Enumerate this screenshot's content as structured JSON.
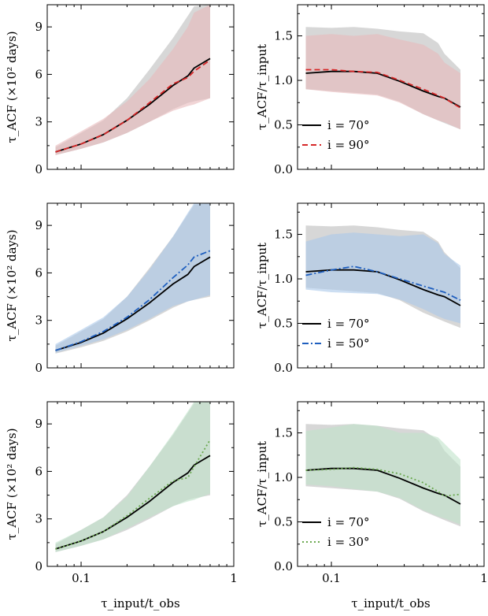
{
  "colors": {
    "black": "#000000",
    "red": "#d62728",
    "blue": "#1f5fbf",
    "green": "#6aa84f",
    "gray_band": "#c9c9c9",
    "red_band": "#e8b9bb",
    "blue_band": "#aac8ea",
    "green_band": "#bfe3c9"
  },
  "chart_data": [
    {
      "type": "area",
      "panel": "left-top",
      "xlabel": "",
      "ylabel": "τ_ACF (×10² days)",
      "xscale": "log",
      "xlim": [
        0.06,
        1.0
      ],
      "ylim": [
        0,
        10.4
      ],
      "xticks": [
        0.1,
        1
      ],
      "xtick_labels": [
        "",
        ""
      ],
      "yticks": [
        0,
        3,
        6,
        9
      ],
      "ytick_labels": [
        "0",
        "3",
        "6",
        "9"
      ],
      "x": [
        0.068,
        0.1,
        0.14,
        0.2,
        0.28,
        0.4,
        0.5,
        0.55,
        0.7
      ],
      "series": [
        {
          "name": "i = 70°",
          "style": "solid",
          "color": "#000000",
          "values": [
            1.1,
            1.6,
            2.2,
            3.1,
            4.1,
            5.3,
            5.9,
            6.4,
            7.0
          ],
          "band_low": [
            0.9,
            1.3,
            1.7,
            2.3,
            3.0,
            3.8,
            4.2,
            4.3,
            4.5
          ],
          "band_high": [
            1.4,
            2.3,
            3.1,
            4.5,
            6.3,
            8.3,
            9.7,
            10.3,
            10.4
          ]
        },
        {
          "name": "i = 90°",
          "style": "dashed",
          "color": "#d62728",
          "values": [
            1.1,
            1.6,
            2.2,
            3.1,
            4.2,
            5.4,
            5.8,
            6.2,
            6.9
          ],
          "band_low": [
            0.9,
            1.3,
            1.7,
            2.3,
            3.0,
            3.7,
            4.0,
            4.1,
            4.5
          ],
          "band_high": [
            1.5,
            2.4,
            3.2,
            4.3,
            5.7,
            7.6,
            9.0,
            9.9,
            10.4
          ]
        }
      ]
    },
    {
      "type": "area",
      "panel": "right-top",
      "xlabel": "",
      "ylabel": "τ_ACF/τ_input",
      "xscale": "log",
      "xlim": [
        0.06,
        1.0
      ],
      "ylim": [
        0,
        1.85
      ],
      "xticks": [
        0.1,
        1
      ],
      "xtick_labels": [
        "",
        ""
      ],
      "yticks": [
        0,
        0.5,
        1.0,
        1.5
      ],
      "ytick_labels": [
        "0.0",
        "0.5",
        "1.0",
        "1.5"
      ],
      "legend_loc": "lower-left",
      "x": [
        0.068,
        0.1,
        0.14,
        0.2,
        0.28,
        0.4,
        0.5,
        0.55,
        0.7
      ],
      "series": [
        {
          "name": "i = 70°",
          "label": "i = 70°",
          "style": "solid",
          "color": "#000000",
          "values": [
            1.08,
            1.1,
            1.1,
            1.08,
            0.99,
            0.88,
            0.82,
            0.8,
            0.7
          ],
          "band_low": [
            0.9,
            0.88,
            0.86,
            0.84,
            0.76,
            0.62,
            0.55,
            0.52,
            0.45
          ],
          "band_high": [
            1.6,
            1.59,
            1.6,
            1.58,
            1.55,
            1.53,
            1.42,
            1.3,
            1.12
          ]
        },
        {
          "name": "i = 90°",
          "label": "i = 90°",
          "style": "dashed",
          "color": "#d62728",
          "values": [
            1.12,
            1.12,
            1.1,
            1.09,
            1.0,
            0.9,
            0.83,
            0.8,
            0.69
          ],
          "band_low": [
            0.9,
            0.87,
            0.85,
            0.83,
            0.75,
            0.62,
            0.55,
            0.53,
            0.45
          ],
          "band_high": [
            1.5,
            1.52,
            1.5,
            1.52,
            1.46,
            1.4,
            1.3,
            1.2,
            1.08
          ]
        }
      ]
    },
    {
      "type": "area",
      "panel": "left-middle",
      "xlabel": "",
      "ylabel": "τ_ACF (×10² days)",
      "xscale": "log",
      "xlim": [
        0.06,
        1.0
      ],
      "ylim": [
        0,
        10.4
      ],
      "xticks": [
        0.1,
        1
      ],
      "xtick_labels": [
        "",
        ""
      ],
      "yticks": [
        0,
        3,
        6,
        9
      ],
      "ytick_labels": [
        "0",
        "3",
        "6",
        "9"
      ],
      "x": [
        0.068,
        0.1,
        0.14,
        0.2,
        0.28,
        0.4,
        0.5,
        0.55,
        0.7
      ],
      "series": [
        {
          "name": "i = 70°",
          "style": "solid",
          "color": "#000000",
          "values": [
            1.1,
            1.6,
            2.2,
            3.1,
            4.1,
            5.3,
            5.9,
            6.4,
            7.0
          ],
          "band_low": [
            0.9,
            1.3,
            1.7,
            2.3,
            3.0,
            3.8,
            4.2,
            4.3,
            4.5
          ],
          "band_high": [
            1.4,
            2.3,
            3.1,
            4.5,
            6.3,
            8.3,
            9.7,
            10.3,
            10.4
          ]
        },
        {
          "name": "i = 50°",
          "style": "dashdot",
          "color": "#1f5fbf",
          "values": [
            1.1,
            1.65,
            2.3,
            3.2,
            4.3,
            5.7,
            6.5,
            7.0,
            7.4
          ],
          "band_low": [
            0.95,
            1.4,
            1.8,
            2.4,
            3.1,
            3.9,
            4.2,
            4.3,
            4.6
          ],
          "band_high": [
            1.5,
            2.4,
            3.2,
            4.5,
            6.2,
            8.3,
            9.8,
            10.4,
            10.4
          ]
        }
      ]
    },
    {
      "type": "area",
      "panel": "right-middle",
      "xlabel": "",
      "ylabel": "τ_ACF/τ_input",
      "xscale": "log",
      "xlim": [
        0.06,
        1.0
      ],
      "ylim": [
        0,
        1.85
      ],
      "xticks": [
        0.1,
        1
      ],
      "xtick_labels": [
        "",
        ""
      ],
      "yticks": [
        0,
        0.5,
        1.0,
        1.5
      ],
      "ytick_labels": [
        "0.0",
        "0.5",
        "1.0",
        "1.5"
      ],
      "legend_loc": "lower-left",
      "x": [
        0.068,
        0.1,
        0.14,
        0.2,
        0.28,
        0.4,
        0.5,
        0.55,
        0.7
      ],
      "series": [
        {
          "name": "i = 70°",
          "label": "i = 70°",
          "style": "solid",
          "color": "#000000",
          "values": [
            1.08,
            1.1,
            1.1,
            1.08,
            0.99,
            0.88,
            0.82,
            0.8,
            0.7
          ],
          "band_low": [
            0.9,
            0.88,
            0.86,
            0.84,
            0.76,
            0.62,
            0.55,
            0.52,
            0.45
          ],
          "band_high": [
            1.6,
            1.59,
            1.6,
            1.58,
            1.55,
            1.53,
            1.42,
            1.3,
            1.12
          ]
        },
        {
          "name": "i = 50°",
          "label": "i = 50°",
          "style": "dashdot",
          "color": "#1f5fbf",
          "values": [
            1.04,
            1.1,
            1.14,
            1.08,
            1.0,
            0.92,
            0.87,
            0.85,
            0.76
          ],
          "band_low": [
            0.88,
            0.85,
            0.84,
            0.83,
            0.77,
            0.66,
            0.58,
            0.55,
            0.5
          ],
          "band_high": [
            1.42,
            1.5,
            1.52,
            1.5,
            1.48,
            1.5,
            1.4,
            1.28,
            1.15
          ]
        }
      ]
    },
    {
      "type": "area",
      "panel": "left-bottom",
      "xlabel": "τ_input/t_obs",
      "ylabel": "τ_ACF (×10² days)",
      "xscale": "log",
      "xlim": [
        0.06,
        1.0
      ],
      "ylim": [
        0,
        10.4
      ],
      "xticks": [
        0.1,
        1
      ],
      "xtick_labels": [
        "0.1",
        "1"
      ],
      "yticks": [
        0,
        3,
        6,
        9
      ],
      "ytick_labels": [
        "0",
        "3",
        "6",
        "9"
      ],
      "x": [
        0.068,
        0.1,
        0.14,
        0.2,
        0.28,
        0.4,
        0.5,
        0.55,
        0.7
      ],
      "series": [
        {
          "name": "i = 70°",
          "style": "solid",
          "color": "#000000",
          "values": [
            1.1,
            1.6,
            2.2,
            3.1,
            4.1,
            5.3,
            5.9,
            6.4,
            7.0
          ],
          "band_low": [
            0.9,
            1.3,
            1.7,
            2.3,
            3.0,
            3.8,
            4.2,
            4.3,
            4.5
          ],
          "band_high": [
            1.4,
            2.3,
            3.1,
            4.5,
            6.3,
            8.3,
            9.7,
            10.3,
            10.4
          ]
        },
        {
          "name": "i = 30°",
          "style": "dotted",
          "color": "#6aa84f",
          "values": [
            1.1,
            1.6,
            2.2,
            3.2,
            4.3,
            5.4,
            5.6,
            6.3,
            8.0
          ],
          "band_low": [
            0.9,
            1.3,
            1.7,
            2.4,
            3.1,
            3.8,
            4.1,
            4.2,
            4.6
          ],
          "band_high": [
            1.5,
            2.3,
            3.1,
            4.4,
            6.3,
            8.4,
            9.8,
            10.4,
            10.4
          ]
        }
      ]
    },
    {
      "type": "area",
      "panel": "right-bottom",
      "xlabel": "τ_input/t_obs",
      "ylabel": "τ_ACF/τ_input",
      "xscale": "log",
      "xlim": [
        0.06,
        1.0
      ],
      "ylim": [
        0,
        1.85
      ],
      "xticks": [
        0.1,
        1
      ],
      "xtick_labels": [
        "0.1",
        "1"
      ],
      "yticks": [
        0,
        0.5,
        1.0,
        1.5
      ],
      "ytick_labels": [
        "0.0",
        "0.5",
        "1.0",
        "1.5"
      ],
      "legend_loc": "lower-left",
      "x": [
        0.068,
        0.1,
        0.14,
        0.2,
        0.28,
        0.4,
        0.5,
        0.55,
        0.7
      ],
      "series": [
        {
          "name": "i = 70°",
          "label": "i = 70°",
          "style": "solid",
          "color": "#000000",
          "values": [
            1.08,
            1.1,
            1.1,
            1.08,
            0.99,
            0.88,
            0.82,
            0.8,
            0.7
          ],
          "band_low": [
            0.9,
            0.88,
            0.86,
            0.84,
            0.76,
            0.62,
            0.55,
            0.52,
            0.45
          ],
          "band_high": [
            1.6,
            1.59,
            1.6,
            1.58,
            1.55,
            1.53,
            1.42,
            1.3,
            1.12
          ]
        },
        {
          "name": "i = 30°",
          "label": "i = 30°",
          "style": "dotted",
          "color": "#6aa84f",
          "values": [
            1.08,
            1.09,
            1.11,
            1.09,
            1.04,
            0.94,
            0.84,
            0.79,
            0.81
          ],
          "band_low": [
            0.92,
            0.9,
            0.87,
            0.84,
            0.77,
            0.63,
            0.56,
            0.54,
            0.47
          ],
          "band_high": [
            1.52,
            1.56,
            1.6,
            1.58,
            1.5,
            1.5,
            1.45,
            1.38,
            1.2
          ]
        }
      ]
    }
  ]
}
